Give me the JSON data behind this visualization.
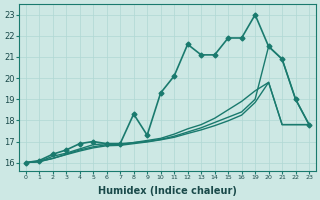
{
  "background_color": "#cde8e4",
  "grid_color": "#b0d8d4",
  "line_color": "#1a7a6e",
  "xlabel": "Humidex (Indice chaleur)",
  "ylabel_ticks": [
    16,
    17,
    18,
    19,
    20,
    21,
    22,
    23
  ],
  "ylim": [
    15.6,
    23.5
  ],
  "xlabels": [
    "0",
    "1",
    "2",
    "3",
    "4",
    "5",
    "6",
    "7",
    "8",
    "9",
    "10",
    "11",
    "12",
    "13",
    "14",
    "15",
    "16",
    "19",
    "20",
    "21",
    "22",
    "23"
  ],
  "series": [
    {
      "y": [
        16.0,
        16.1,
        16.4,
        16.6,
        16.9,
        17.0,
        16.9,
        16.9,
        18.3,
        17.3,
        19.3,
        20.1,
        21.6,
        21.1,
        21.1,
        21.9,
        21.9,
        23.0,
        21.5,
        20.9,
        19.0,
        17.8
      ],
      "marker": "D",
      "markersize": 2.5,
      "linewidth": 1.2
    },
    {
      "y": [
        16.0,
        16.05,
        16.3,
        16.45,
        16.65,
        16.85,
        16.9,
        16.9,
        16.95,
        17.05,
        17.15,
        17.35,
        17.6,
        17.8,
        18.1,
        18.5,
        18.9,
        19.4,
        19.8,
        17.8,
        17.8,
        17.8
      ],
      "marker": null,
      "markersize": 0,
      "linewidth": 1.0
    },
    {
      "y": [
        16.0,
        16.05,
        16.2,
        16.4,
        16.6,
        16.75,
        16.85,
        16.85,
        16.95,
        17.0,
        17.1,
        17.25,
        17.45,
        17.65,
        17.9,
        18.15,
        18.4,
        19.0,
        21.5,
        20.9,
        19.0,
        17.8
      ],
      "marker": null,
      "markersize": 0,
      "linewidth": 1.0
    },
    {
      "y": [
        16.0,
        16.05,
        16.2,
        16.38,
        16.55,
        16.7,
        16.8,
        16.82,
        16.9,
        16.98,
        17.08,
        17.2,
        17.38,
        17.55,
        17.75,
        17.98,
        18.25,
        18.85,
        19.8,
        17.8,
        17.8,
        17.8
      ],
      "marker": null,
      "markersize": 0,
      "linewidth": 1.0
    }
  ]
}
